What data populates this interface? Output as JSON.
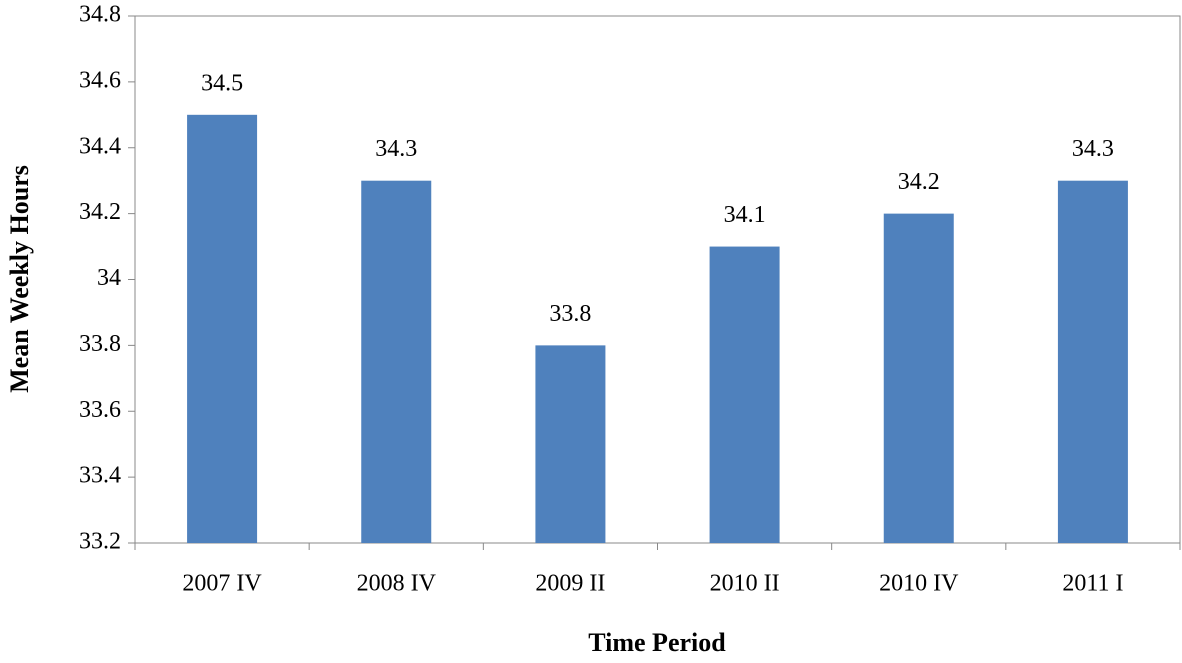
{
  "chart_data": {
    "type": "bar",
    "x_label": "Time Period",
    "y_label": "Mean Weekly Hours",
    "categories": [
      "2007 IV",
      "2008 IV",
      "2009 II",
      "2010 II",
      "2010 IV",
      "2011 I"
    ],
    "values": [
      34.5,
      34.3,
      33.8,
      34.1,
      34.2,
      34.3
    ],
    "color": "#4f81bd",
    "ylim": [
      33.2,
      34.8
    ],
    "yticks": [
      33.2,
      33.4,
      33.6,
      33.8,
      34,
      34.2,
      34.4,
      34.6,
      34.8
    ],
    "grid": false
  }
}
